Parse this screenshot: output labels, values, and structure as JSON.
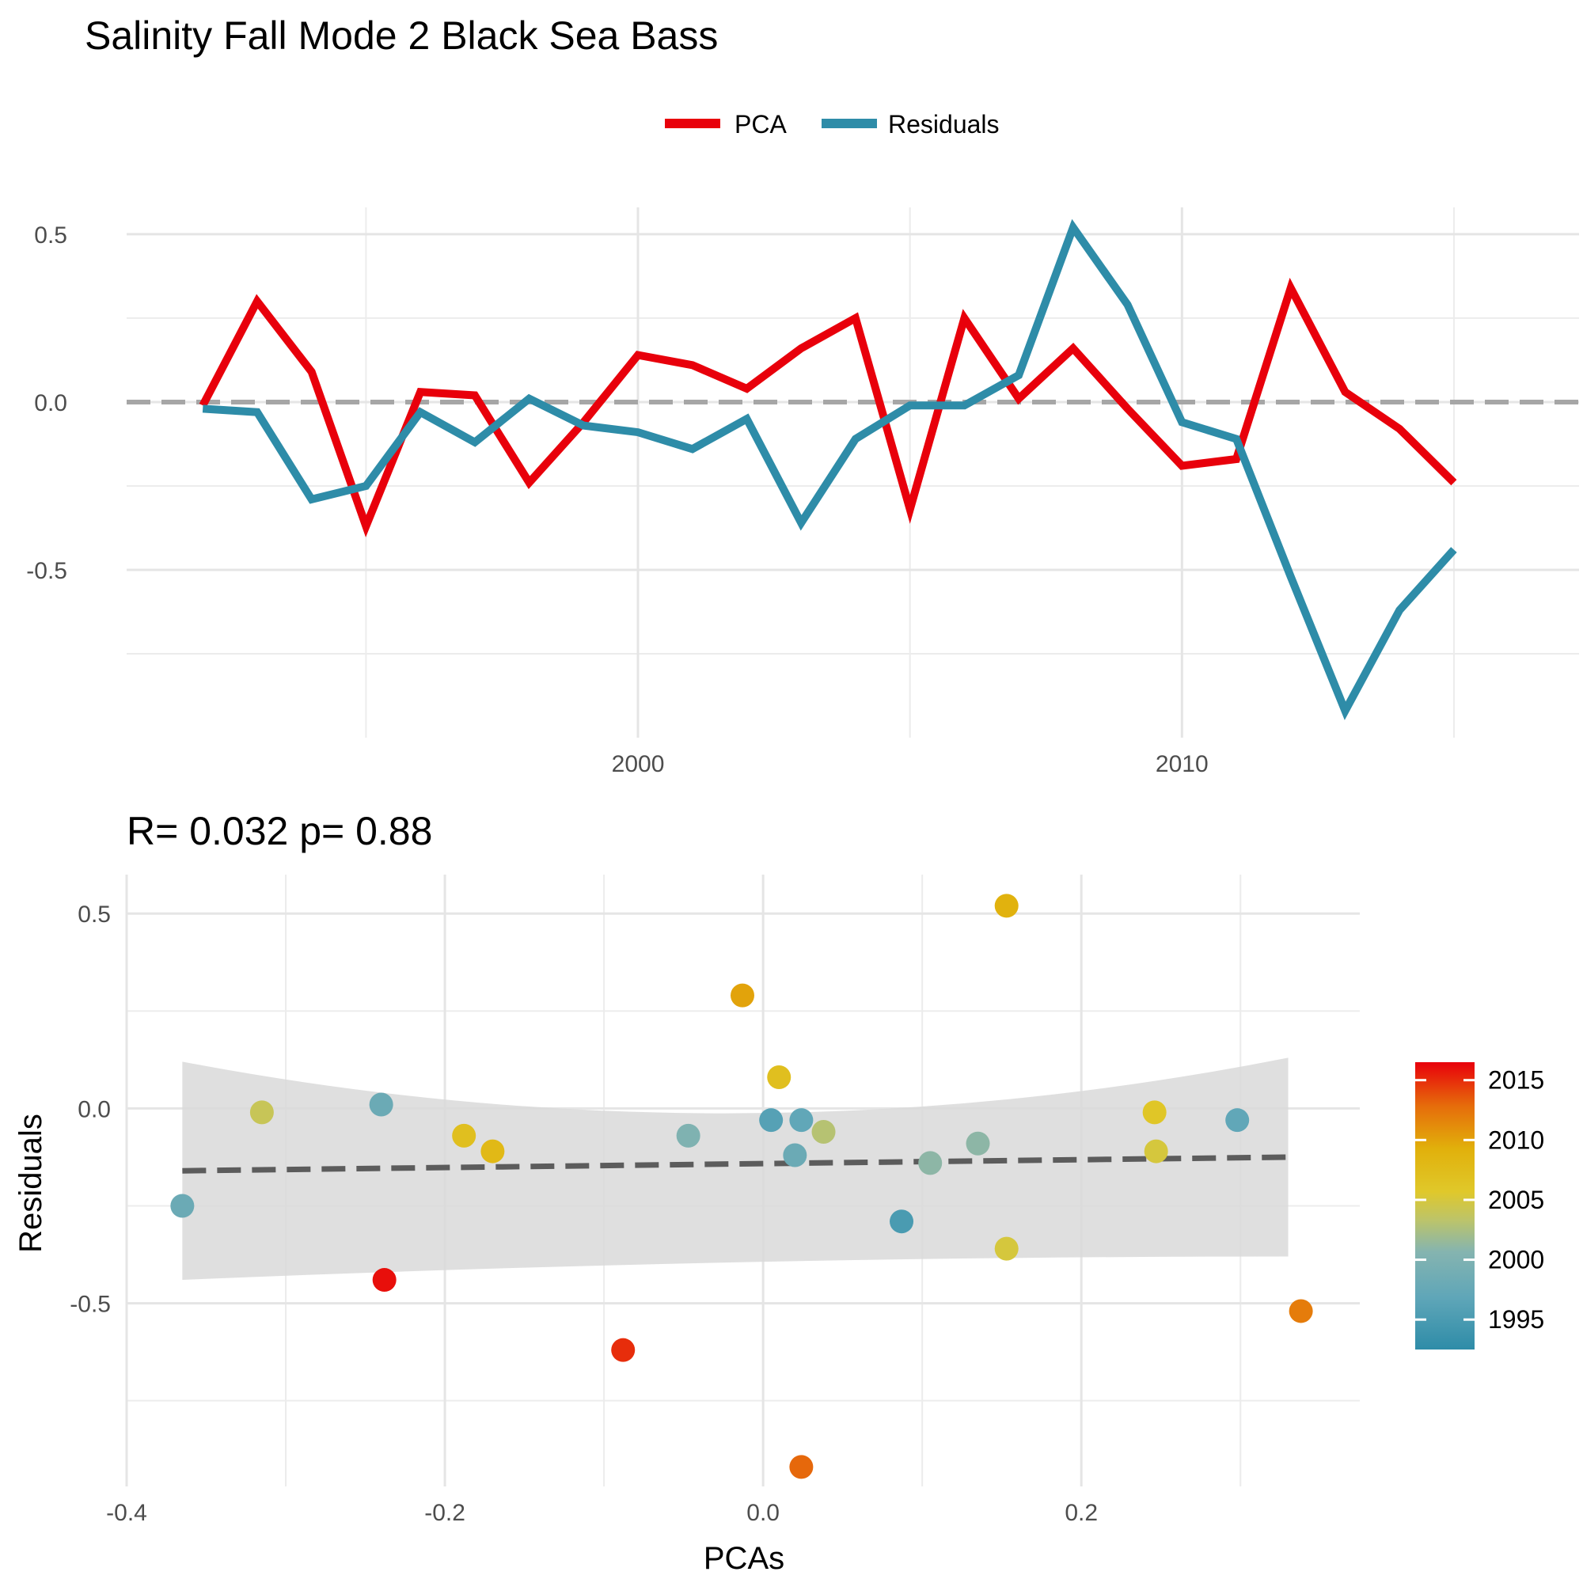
{
  "figure": {
    "title": "Salinity Fall Mode 2 Black Sea Bass"
  },
  "chart_data": [
    {
      "type": "line",
      "title": "Salinity Fall Mode 2 Black Sea Bass",
      "xlabel": "",
      "ylabel": "",
      "x_ticks": [
        2000,
        2010
      ],
      "y_ticks": [
        0.5,
        0.0,
        -0.5
      ],
      "y_tick_labels": [
        "0.5",
        "0.0",
        "-0.5"
      ],
      "xlim": [
        1990.6,
        2017.3
      ],
      "ylim": [
        -1.0,
        0.58
      ],
      "grid": true,
      "legend_position": "top",
      "reference_line": 0.0,
      "x": [
        1992,
        1993,
        1994,
        1995,
        1996,
        1997,
        1998,
        1999,
        2000,
        2001,
        2002,
        2003,
        2004,
        2005,
        2006,
        2007,
        2008,
        2009,
        2010,
        2011,
        2012,
        2013,
        2014,
        2015,
        2016
      ],
      "series": [
        {
          "name": "PCA",
          "color": "#e8000b",
          "values": [
            -0.01,
            0.3,
            0.09,
            -0.37,
            0.03,
            0.02,
            -0.24,
            -0.06,
            0.14,
            0.11,
            0.04,
            0.16,
            0.25,
            -0.32,
            0.25,
            0.01,
            0.16,
            -0.02,
            -0.19,
            -0.17,
            0.34,
            0.03,
            -0.08,
            -0.24,
            null
          ]
        },
        {
          "name": "Residuals",
          "color": "#2e8ca8",
          "values": [
            -0.02,
            -0.03,
            -0.29,
            -0.25,
            -0.03,
            -0.12,
            0.01,
            -0.07,
            -0.09,
            -0.14,
            -0.05,
            -0.36,
            -0.11,
            -0.01,
            -0.01,
            0.08,
            0.52,
            0.29,
            -0.06,
            -0.11,
            -0.52,
            -0.92,
            -0.62,
            -0.44,
            null
          ]
        }
      ]
    },
    {
      "type": "scatter",
      "title": "R= 0.032  p= 0.88",
      "xlabel": "PCAs",
      "ylabel": "Residuals",
      "x_ticks": [
        -0.4,
        -0.2,
        0.0,
        0.2
      ],
      "x_tick_labels": [
        "-0.4",
        "-0.2",
        "0.0",
        "0.2"
      ],
      "y_ticks": [
        0.5,
        0.0,
        -0.5
      ],
      "y_tick_labels": [
        "0.5",
        "0.0",
        "-0.5"
      ],
      "xlim": [
        -0.4,
        0.375
      ],
      "ylim": [
        -0.97,
        0.6
      ],
      "grid": true,
      "regression": {
        "x": [
          -0.365,
          0.33
        ],
        "y": [
          -0.16,
          -0.125
        ],
        "ci_lower_ends": [
          -0.44,
          -0.38
        ],
        "ci_upper_ends": [
          0.12,
          0.13
        ],
        "ci_mid": [
          -0.02,
          -0.26
        ]
      },
      "points": [
        {
          "x": -0.365,
          "y": -0.25,
          "year": 1998
        },
        {
          "x": -0.315,
          "y": -0.01,
          "year": 2004
        },
        {
          "x": -0.24,
          "y": 0.01,
          "year": 1998
        },
        {
          "x": -0.238,
          "y": -0.44,
          "year": 2016
        },
        {
          "x": -0.188,
          "y": -0.07,
          "year": 2007
        },
        {
          "x": -0.17,
          "y": -0.11,
          "year": 2008
        },
        {
          "x": -0.088,
          "y": -0.62,
          "year": 2015
        },
        {
          "x": -0.047,
          "y": -0.07,
          "year": 2000
        },
        {
          "x": -0.013,
          "y": 0.29,
          "year": 2010
        },
        {
          "x": 0.005,
          "y": -0.03,
          "year": 1996
        },
        {
          "x": 0.01,
          "y": 0.08,
          "year": 2007
        },
        {
          "x": 0.02,
          "y": -0.12,
          "year": 1998
        },
        {
          "x": 0.024,
          "y": -0.92,
          "year": 2013
        },
        {
          "x": 0.024,
          "y": -0.03,
          "year": 1997
        },
        {
          "x": 0.038,
          "y": -0.06,
          "year": 2003
        },
        {
          "x": 0.087,
          "y": -0.29,
          "year": 1995
        },
        {
          "x": 0.105,
          "y": -0.14,
          "year": 2001
        },
        {
          "x": 0.135,
          "y": -0.09,
          "year": 2001
        },
        {
          "x": 0.153,
          "y": 0.52,
          "year": 2009
        },
        {
          "x": 0.153,
          "y": -0.36,
          "year": 2005
        },
        {
          "x": 0.246,
          "y": -0.01,
          "year": 2006
        },
        {
          "x": 0.247,
          "y": -0.11,
          "year": 2005
        },
        {
          "x": 0.298,
          "y": -0.03,
          "year": 1997
        },
        {
          "x": 0.338,
          "y": -0.52,
          "year": 2012
        }
      ],
      "colorbar": {
        "ticks": [
          2015,
          2010,
          2005,
          2000,
          1995
        ],
        "range": [
          1992.5,
          2016.5
        ],
        "colors": [
          "#e8000b",
          "#e66b0b",
          "#e1b00b",
          "#e0c82a",
          "#bcc46a",
          "#85b4b0",
          "#5fa6b8",
          "#3b94aa",
          "#2e8ca8"
        ]
      }
    }
  ]
}
